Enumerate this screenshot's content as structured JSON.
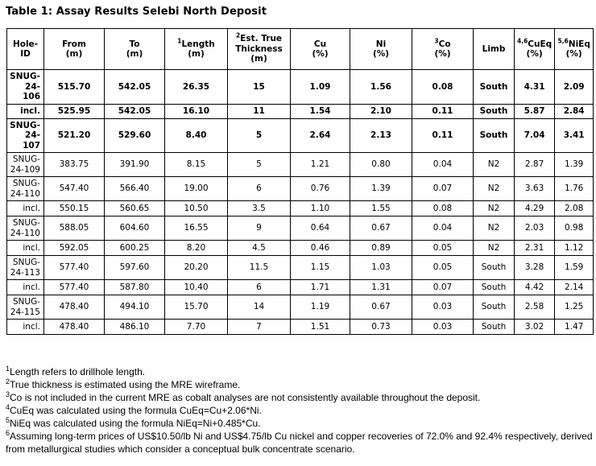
{
  "title": "Table 1: Assay Results Selebi North Deposit",
  "table": {
    "columns": [
      {
        "id": "hole-id",
        "sup": "",
        "label": "Hole-ID",
        "unit": ""
      },
      {
        "id": "from",
        "sup": "",
        "label": "From",
        "unit": "(m)"
      },
      {
        "id": "to",
        "sup": "",
        "label": "To",
        "unit": "(m)"
      },
      {
        "id": "length",
        "sup": "1",
        "label": "Length",
        "unit": "(m)"
      },
      {
        "id": "est-true-thickness",
        "sup": "2",
        "label": "Est. True Thickness",
        "unit": "(m)"
      },
      {
        "id": "cu",
        "sup": "",
        "label": "Cu",
        "unit": "(%)"
      },
      {
        "id": "ni",
        "sup": "",
        "label": "Ni",
        "unit": "(%)"
      },
      {
        "id": "co",
        "sup": "3",
        "label": "Co",
        "unit": "(%)"
      },
      {
        "id": "limb",
        "sup": "",
        "label": "Limb",
        "unit": ""
      },
      {
        "id": "cueq",
        "sup": "4,6",
        "label": "CuEq",
        "unit": "(%)"
      },
      {
        "id": "nieq",
        "sup": "5,6",
        "label": "NiEq",
        "unit": "(%)"
      }
    ],
    "rows": [
      {
        "bold": true,
        "cells": [
          "SNUG-24-106",
          "515.70",
          "542.05",
          "26.35",
          "15",
          "1.09",
          "1.56",
          "0.08",
          "South",
          "4.31",
          "2.09"
        ]
      },
      {
        "bold": true,
        "cells": [
          "incl.",
          "525.95",
          "542.05",
          "16.10",
          "11",
          "1.54",
          "2.10",
          "0.11",
          "South",
          "5.87",
          "2.84"
        ]
      },
      {
        "bold": true,
        "cells": [
          "SNUG-24-107",
          "521.20",
          "529.60",
          "8.40",
          "5",
          "2.64",
          "2.13",
          "0.11",
          "South",
          "7.04",
          "3.41"
        ]
      },
      {
        "bold": false,
        "cells": [
          "SNUG-24-109",
          "383.75",
          "391.90",
          "8.15",
          "5",
          "1.21",
          "0.80",
          "0.04",
          "N2",
          "2.87",
          "1.39"
        ]
      },
      {
        "bold": false,
        "cells": [
          "SNUG-24-110",
          "547.40",
          "566.40",
          "19.00",
          "6",
          "0.76",
          "1.39",
          "0.07",
          "N2",
          "3.63",
          "1.76"
        ]
      },
      {
        "bold": false,
        "cells": [
          "incl.",
          "550.15",
          "560.65",
          "10.50",
          "3.5",
          "1.10",
          "1.55",
          "0.08",
          "N2",
          "4.29",
          "2.08"
        ]
      },
      {
        "bold": false,
        "cells": [
          "SNUG-24-110",
          "588.05",
          "604.60",
          "16.55",
          "9",
          "0.64",
          "0.67",
          "0.04",
          "N2",
          "2.03",
          "0.98"
        ]
      },
      {
        "bold": false,
        "cells": [
          "incl.",
          "592.05",
          "600.25",
          "8.20",
          "4.5",
          "0.46",
          "0.89",
          "0.05",
          "N2",
          "2.31",
          "1.12"
        ]
      },
      {
        "bold": false,
        "cells": [
          "SNUG-24-113",
          "577.40",
          "597.60",
          "20.20",
          "11.5",
          "1.15",
          "1.03",
          "0.05",
          "South",
          "3.28",
          "1.59"
        ]
      },
      {
        "bold": false,
        "cells": [
          "incl.",
          "577.40",
          "587.80",
          "10.40",
          "6",
          "1.71",
          "1.31",
          "0.07",
          "South",
          "4.42",
          "2.14"
        ]
      },
      {
        "bold": false,
        "cells": [
          "SNUG-24-115",
          "478.40",
          "494.10",
          "15.70",
          "14",
          "1.19",
          "0.67",
          "0.03",
          "South",
          "2.58",
          "1.25"
        ]
      },
      {
        "bold": false,
        "cells": [
          "incl.",
          "478.40",
          "486.10",
          "7.70",
          "7",
          "1.51",
          "0.73",
          "0.03",
          "South",
          "3.02",
          "1.47"
        ]
      }
    ]
  },
  "footnotes": [
    {
      "sup": "1",
      "text": "Length refers to drillhole length."
    },
    {
      "sup": "2",
      "text": "True thickness is estimated using the MRE wireframe."
    },
    {
      "sup": "3",
      "text": "Co is not included in the current MRE as cobalt analyses are not consistently available throughout the deposit."
    },
    {
      "sup": "4",
      "text": "CuEq was calculated using the formula CuEq=Cu+2.06*Ni."
    },
    {
      "sup": "5",
      "text": "NiEq was calculated using the formula NiEq=Ni+0.485*Cu."
    },
    {
      "sup": "6",
      "text": "Assuming long-term prices of US$10.50/lb Ni and US$4.75/lb Cu nickel and copper recoveries of 72.0% and 92.4% respectively, derived from metallurgical studies which consider a conceptual bulk concentrate scenario."
    }
  ]
}
